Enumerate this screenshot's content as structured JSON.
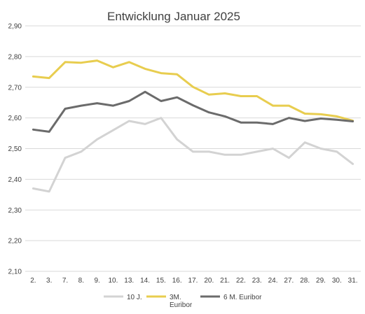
{
  "chart_data": {
    "type": "line",
    "title": "Entwicklung Januar 2025",
    "xlabel": "",
    "ylabel": "",
    "categories": [
      "2.",
      "3.",
      "7.",
      "8.",
      "9.",
      "10.",
      "13.",
      "14.",
      "15.",
      "16.",
      "17.",
      "20.",
      "21.",
      "22.",
      "23.",
      "24.",
      "27.",
      "28.",
      "29.",
      "30.",
      "31."
    ],
    "ylim": [
      2.1,
      2.9
    ],
    "yticks": [
      "2,10",
      "2,20",
      "2,30",
      "2,40",
      "2,50",
      "2,60",
      "2,70",
      "2,80",
      "2,90"
    ],
    "grid": true,
    "legend_position": "bottom",
    "series": [
      {
        "name": "10 J.",
        "color": "#d3d3d3",
        "values": [
          2.37,
          2.36,
          2.47,
          2.49,
          2.53,
          2.56,
          2.59,
          2.58,
          2.6,
          2.53,
          2.49,
          2.49,
          2.48,
          2.48,
          2.49,
          2.5,
          2.47,
          2.52,
          2.5,
          2.49,
          2.45
        ]
      },
      {
        "name": "3M. Euribor",
        "legend_lines": [
          "3M.",
          "Euribor"
        ],
        "color": "#e8cd4f",
        "values": [
          2.735,
          2.73,
          2.782,
          2.78,
          2.787,
          2.765,
          2.782,
          2.76,
          2.746,
          2.742,
          2.701,
          2.676,
          2.68,
          2.671,
          2.671,
          2.64,
          2.64,
          2.614,
          2.612,
          2.605,
          2.591
        ]
      },
      {
        "name": "6 M. Euribor",
        "color": "#6b6b6b",
        "values": [
          2.562,
          2.555,
          2.63,
          2.64,
          2.648,
          2.64,
          2.655,
          2.685,
          2.655,
          2.667,
          2.641,
          2.618,
          2.605,
          2.585,
          2.585,
          2.58,
          2.6,
          2.59,
          2.598,
          2.594,
          2.589
        ]
      }
    ]
  }
}
